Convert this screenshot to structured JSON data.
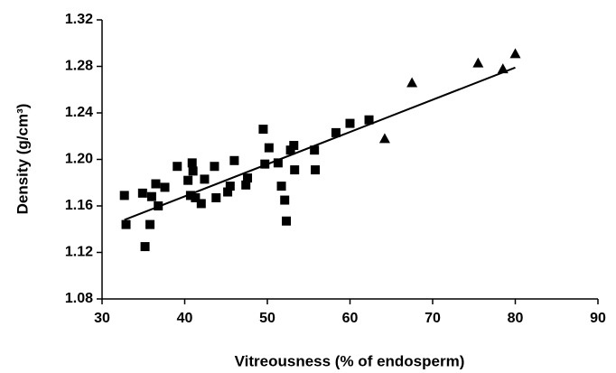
{
  "chart_data": {
    "type": "scatter",
    "x_label": "Vitreousness (% of endosperm)",
    "y_label": "Density (g/cm³)",
    "xlim": [
      30,
      90
    ],
    "xticks": [
      30,
      40,
      50,
      60,
      70,
      80,
      90
    ],
    "ylim": [
      1.08,
      1.32
    ],
    "yticks": [
      1.08,
      1.12,
      1.16,
      {
        "value": 1.2,
        "label": "1.20"
      },
      1.24,
      1.28,
      1.32
    ],
    "grid": false,
    "series": [
      {
        "marker": "square",
        "color": "#000000",
        "x": [
          32.7,
          32.9,
          34.9,
          35.2,
          35.8,
          36.0,
          36.5,
          36.8,
          37.6,
          39.1,
          40.4,
          40.7,
          40.9,
          41.0,
          41.3,
          42.0,
          42.4,
          43.6,
          43.8,
          45.2,
          45.5,
          46.0,
          47.4,
          47.6,
          49.5,
          49.7,
          50.2,
          51.3,
          51.7,
          52.1,
          52.3,
          52.8,
          53.2,
          53.3,
          55.7,
          55.8,
          58.3,
          60.0,
          62.3
        ],
        "values": [
          1.169,
          1.144,
          1.171,
          1.125,
          1.144,
          1.168,
          1.179,
          1.16,
          1.176,
          1.194,
          1.182,
          1.169,
          1.197,
          1.19,
          1.167,
          1.162,
          1.183,
          1.194,
          1.167,
          1.172,
          1.177,
          1.199,
          1.178,
          1.184,
          1.226,
          1.196,
          1.21,
          1.197,
          1.177,
          1.165,
          1.147,
          1.208,
          1.212,
          1.191,
          1.208,
          1.191,
          1.223,
          1.231,
          1.234
        ]
      },
      {
        "marker": "triangle",
        "color": "#000000",
        "x": [
          64.2,
          67.5,
          75.5,
          78.5,
          80.0
        ],
        "values": [
          1.218,
          1.266,
          1.283,
          1.278,
          1.291
        ]
      }
    ],
    "trendline": {
      "color": "#000000",
      "x": [
        32.7,
        80.0
      ],
      "values": [
        1.148,
        1.279
      ]
    }
  }
}
